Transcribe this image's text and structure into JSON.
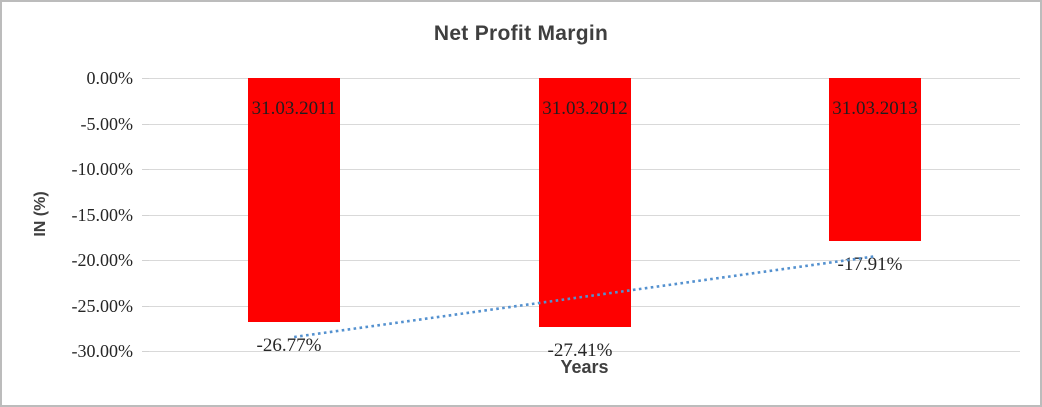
{
  "chart_data": {
    "type": "bar",
    "title": "Net Profit Margin",
    "xlabel": "Years",
    "ylabel": "IN (%)",
    "categories": [
      "31.03.2011",
      "31.03.2012",
      "31.03.2013"
    ],
    "values": [
      -26.77,
      -27.41,
      -17.91
    ],
    "value_labels": [
      "-26.77%",
      "-27.41%",
      "-17.91%"
    ],
    "ylim": [
      -30,
      0
    ],
    "yticks": [
      0,
      -5,
      -10,
      -15,
      -20,
      -25,
      -30
    ],
    "ytick_labels": [
      "0.00%",
      "-5.00%",
      "-10.00%",
      "-15.00%",
      "-20.00%",
      "-25.00%",
      "-30.00%"
    ],
    "grid": true,
    "legend": "none",
    "bar_color": "#fe0000",
    "gridline_color": "#d9d9d9",
    "trendline": {
      "type": "linear",
      "style": "dotted",
      "color": "#5491cf",
      "fit_values": [
        -28.46,
        -24.03,
        -19.6
      ]
    }
  }
}
